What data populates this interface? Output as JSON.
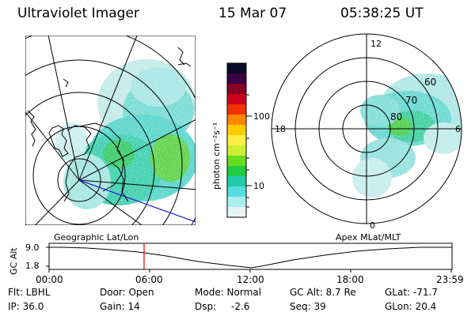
{
  "header": {
    "instrument": "Ultraviolet Imager",
    "date": "15 Mar 07",
    "time": "05:38:25 UT"
  },
  "colorbar": {
    "ticks": [
      "100",
      "10"
    ],
    "unit_label": "photon cm⁻²s⁻¹",
    "colors": [
      "#0a0a2a",
      "#3a0044",
      "#880022",
      "#cc0018",
      "#ee3300",
      "#ff8800",
      "#ffcc00",
      "#ffee44",
      "#ccee33",
      "#66dd22",
      "#22cc44",
      "#22ccaa",
      "#55dddd",
      "#aaeeee",
      "#e6f4f4"
    ]
  },
  "left_panel": {
    "label": "Geographic Lat/Lon"
  },
  "right_panel": {
    "label": "Apex MLat/MLT",
    "mlt_labels": [
      "12",
      "18",
      "6",
      "0"
    ],
    "mlat_labels": [
      "60",
      "70",
      "80"
    ]
  },
  "timeline": {
    "y_label": "GC Alt",
    "y_ticks": [
      "9.0",
      "1.8"
    ],
    "x_ticks": [
      "00:00",
      "06:00",
      "12:00",
      "18:00",
      "23:59"
    ],
    "marker_time": "05:38",
    "marker_color": "#e00000"
  },
  "status": {
    "flt": "Flt: LBHL",
    "door": "Door: Open",
    "mode": "Mode: Normal",
    "gc_alt": "GC Alt: 8.7 Re",
    "glat": "GLat: -71.7",
    "ip": "IP: 36.0",
    "gain": "Gain: 14",
    "dsp_label": "Dsp:",
    "dsp_value": "-2.6",
    "seq": "Seq: 39",
    "glon": "GLon: 20.4"
  }
}
